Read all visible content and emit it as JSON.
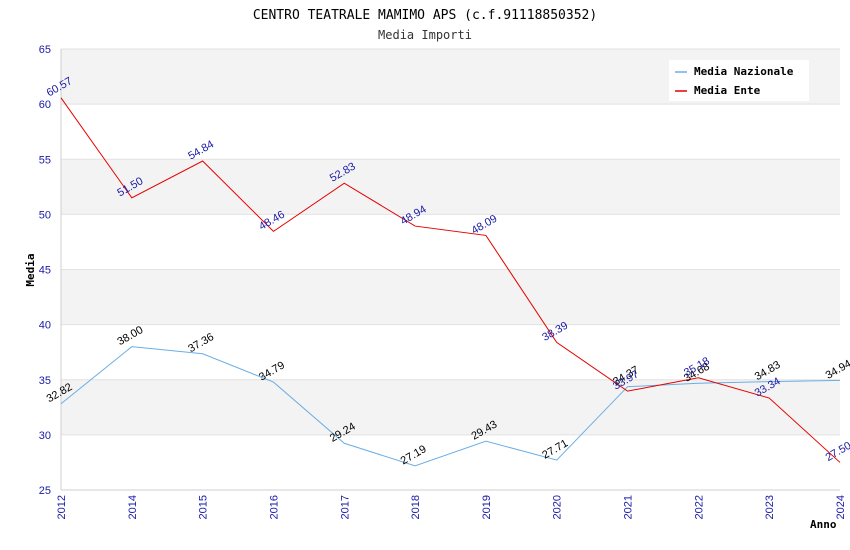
{
  "chart_data": {
    "type": "line",
    "title": "CENTRO TEATRALE MAMIMO APS (c.f.91118850352)",
    "subtitle": "Media Importi",
    "xlabel": "Anno",
    "ylabel": "Media",
    "ylim": [
      25,
      65
    ],
    "yticks": [
      "25",
      "30",
      "35",
      "40",
      "45",
      "50",
      "55",
      "60",
      "65"
    ],
    "categories": [
      "2012",
      "2014",
      "2015",
      "2016",
      "2017",
      "2018",
      "2019",
      "2020",
      "2021",
      "2022",
      "2023",
      "2024"
    ],
    "grid": true,
    "legend_position": "top-right",
    "series": [
      {
        "name": "Media Nazionale",
        "color": "#6aaee6",
        "label_color": "#000000",
        "values": [
          32.82,
          38.0,
          37.36,
          34.79,
          29.24,
          27.19,
          29.43,
          27.71,
          34.37,
          34.68,
          34.83,
          34.94
        ],
        "labels": [
          "32.82",
          "38.00",
          "37.36",
          "34.79",
          "29.24",
          "27.19",
          "29.43",
          "27.71",
          "34.37",
          "34.68",
          "34.83",
          "34.94"
        ]
      },
      {
        "name": "Media Ente",
        "color": "#e60000",
        "label_color": "#1a1aa6",
        "values": [
          60.57,
          51.5,
          54.84,
          48.46,
          52.83,
          48.94,
          48.09,
          38.39,
          33.97,
          35.18,
          33.34,
          27.5
        ],
        "labels": [
          "60.57",
          "51.50",
          "54.84",
          "48.46",
          "52.83",
          "48.94",
          "48.09",
          "38.39",
          "33.97",
          "35.18",
          "33.34",
          "27.50"
        ]
      }
    ]
  }
}
